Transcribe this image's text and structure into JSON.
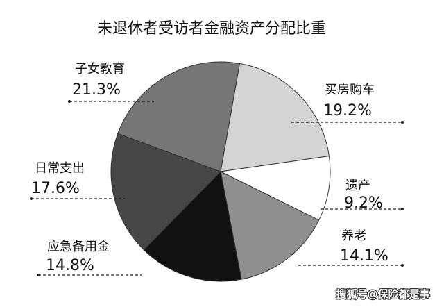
{
  "chart_data": {
    "type": "pie",
    "title": "未退休者受访者金融资产分配比重",
    "categories": [
      "买房购车",
      "遗产",
      "养老",
      "应急备用金",
      "日常支出",
      "子女教育"
    ],
    "values": [
      19.2,
      9.2,
      14.1,
      14.8,
      17.6,
      21.3
    ],
    "value_labels": [
      "19.2%",
      "9.2%",
      "14.1%",
      "14.8%",
      "17.6%",
      "21.3%"
    ],
    "colors": [
      "#d4d4d4",
      "#ffffff",
      "#8f8f8f",
      "#111111",
      "#474747",
      "#767676"
    ],
    "watermark": "搜狐号@保险都是事"
  }
}
